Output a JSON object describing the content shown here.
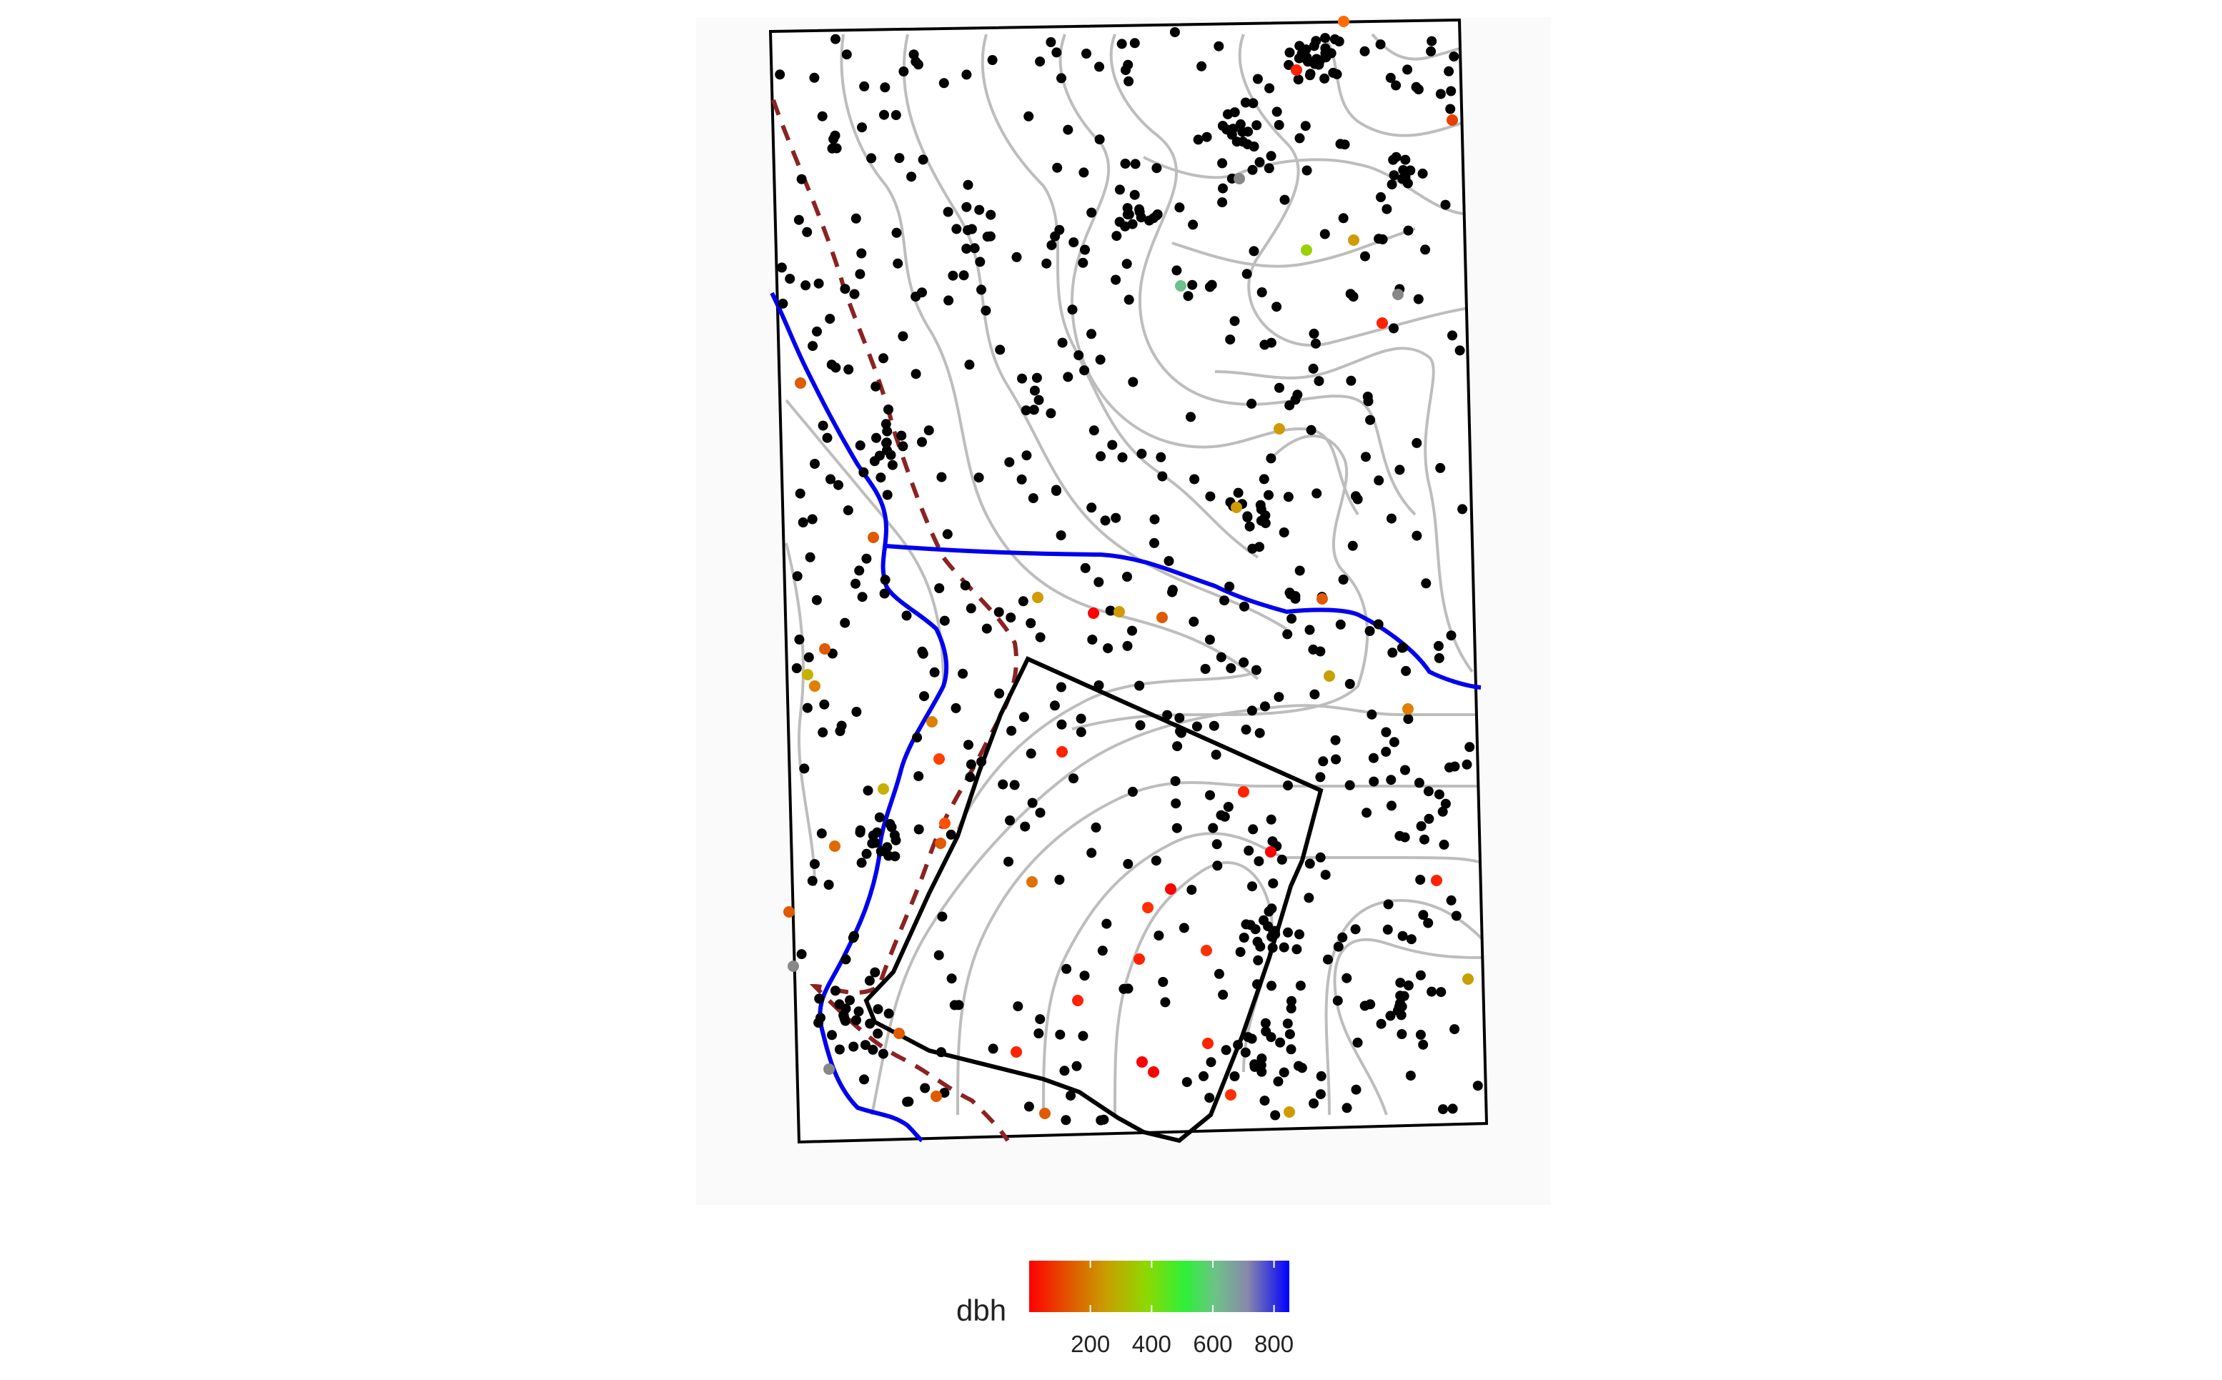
{
  "legend": {
    "title": "dbh",
    "ticks": [
      {
        "value": 200,
        "label": "200"
      },
      {
        "value": 400,
        "label": "400"
      },
      {
        "value": 600,
        "label": "600"
      },
      {
        "value": 800,
        "label": "800"
      }
    ],
    "range": [
      0,
      850
    ],
    "gradient": [
      "#ff0000",
      "#d09a00",
      "#9ad000",
      "#3fe83f",
      "#2ef03a",
      "#8a8aa8",
      "#5a5acc",
      "#0000ff"
    ]
  },
  "colors": {
    "panel_background": "#fafafa",
    "tree_point": "#000000",
    "contour": "#bdbdbd",
    "stream": "#0000ee",
    "trail": "#8b2323",
    "boundary": "#000000"
  },
  "layers": [
    "plot-boundary",
    "contour-lines",
    "stream",
    "trail",
    "subplot-boundary",
    "tree-points",
    "colored-tree-points"
  ]
}
